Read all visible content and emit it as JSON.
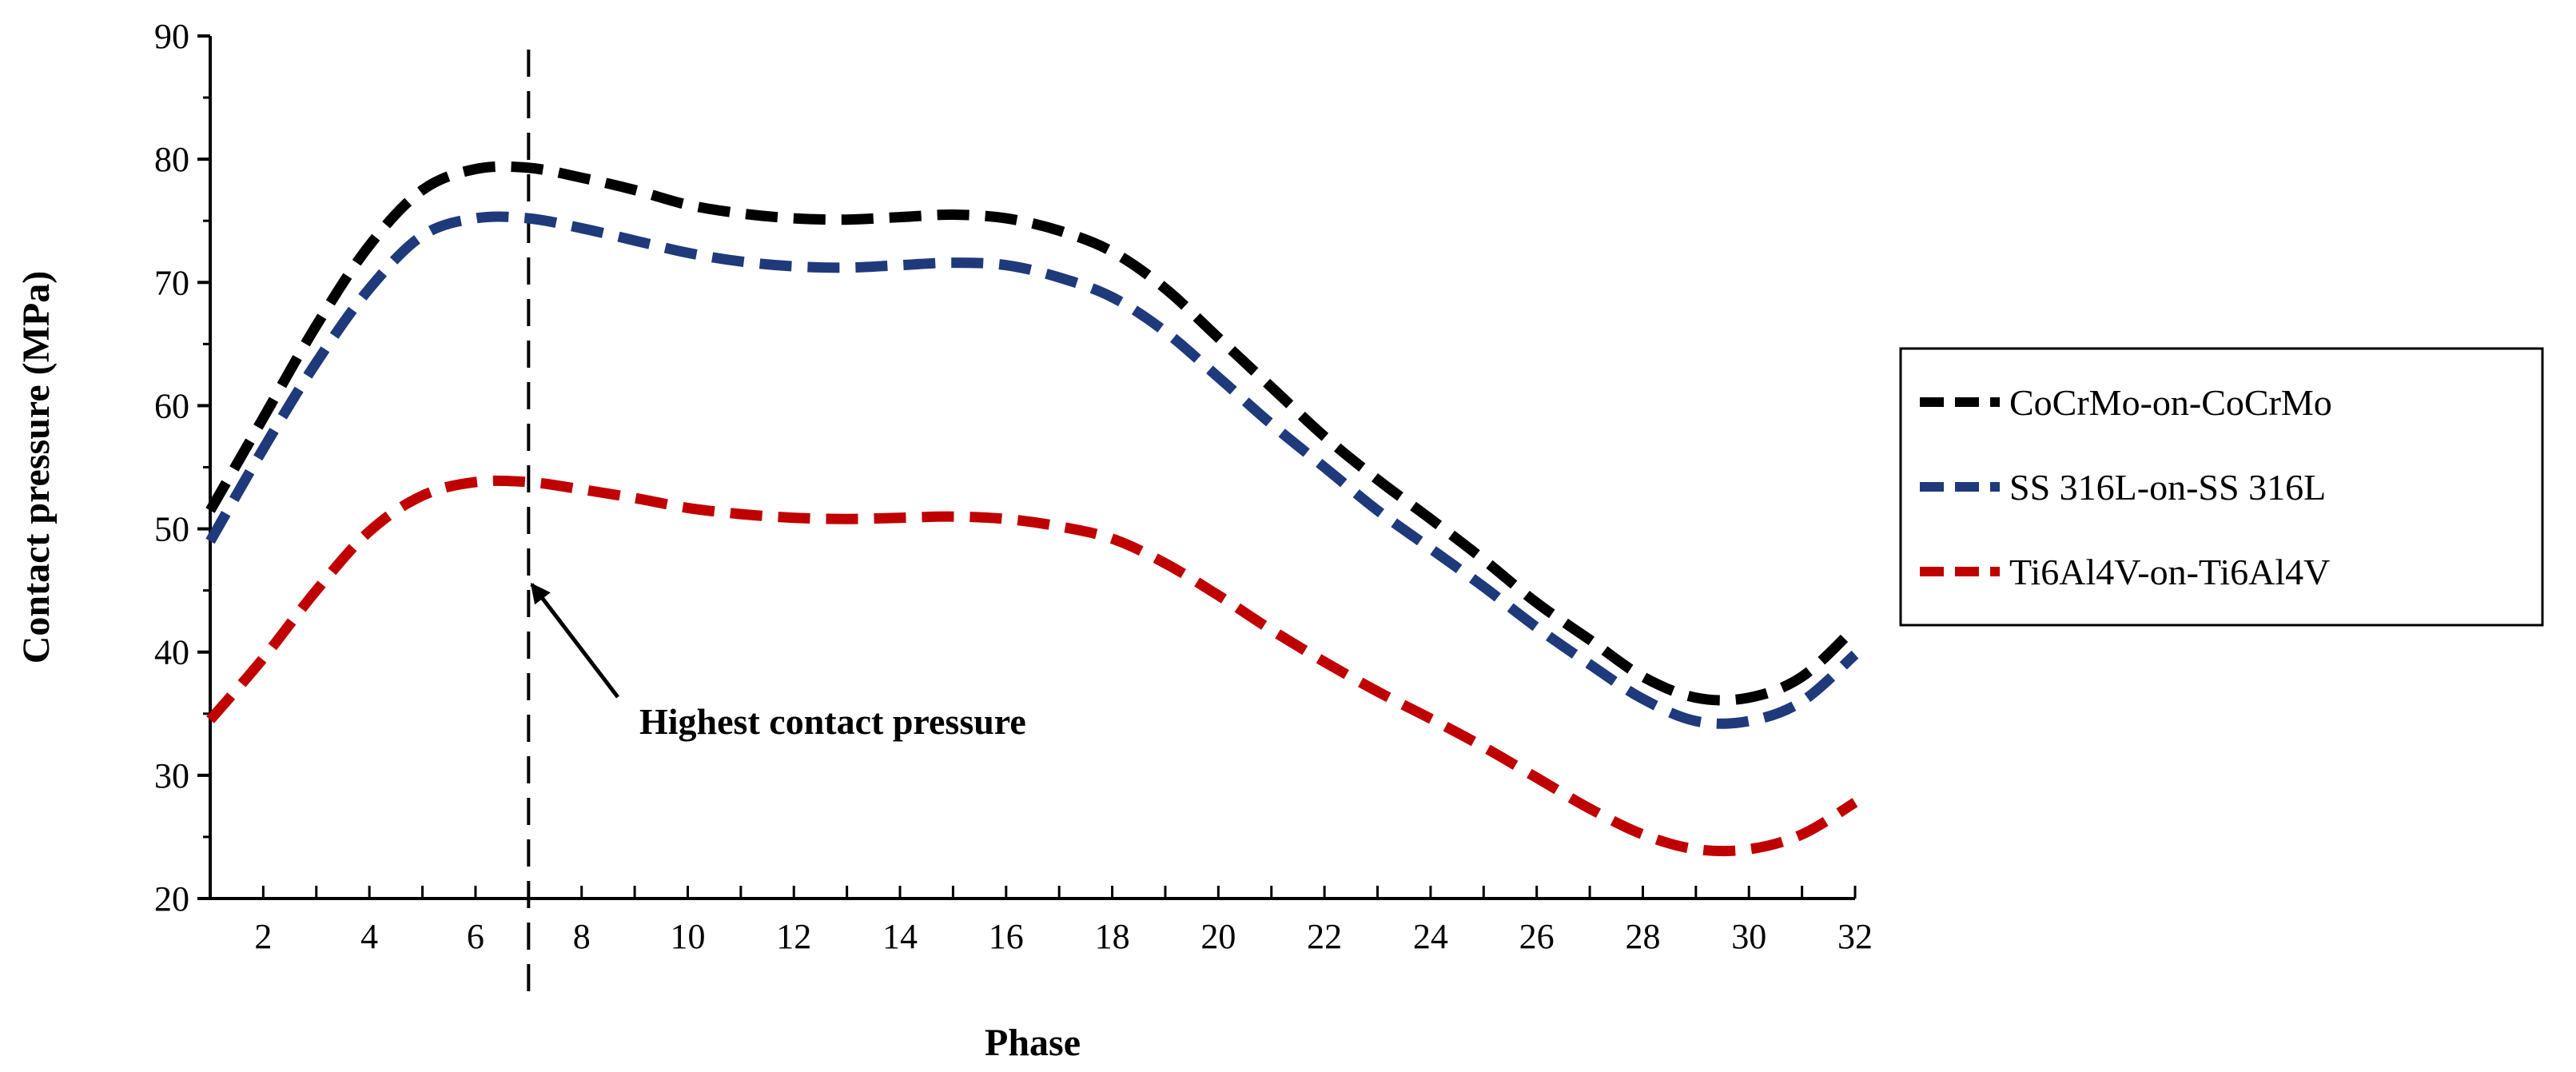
{
  "chart_data": {
    "type": "line",
    "xlabel": "Phase",
    "ylabel": "Contact pressure (MPa)",
    "xlim": [
      1,
      32
    ],
    "ylim": [
      20,
      90
    ],
    "x_ticks": [
      2,
      4,
      6,
      8,
      10,
      12,
      14,
      16,
      18,
      20,
      22,
      24,
      26,
      28,
      30,
      32
    ],
    "y_ticks": [
      20,
      30,
      40,
      50,
      60,
      70,
      80,
      90
    ],
    "x": [
      1,
      2,
      3,
      4,
      5,
      6,
      7,
      8,
      9,
      10,
      11,
      12,
      13,
      14,
      15,
      16,
      17,
      18,
      19,
      20,
      21,
      22,
      23,
      24,
      25,
      26,
      27,
      28,
      29,
      30,
      31,
      32
    ],
    "series": [
      {
        "name": "CoCrMo-on-CoCrMo",
        "color": "#000000",
        "values": [
          51.5,
          59,
          66.5,
          73,
          77.5,
          79.2,
          79.3,
          78.5,
          77.5,
          76.3,
          75.6,
          75.2,
          75.1,
          75.3,
          75.5,
          75.2,
          74.2,
          72.5,
          69.5,
          65.5,
          61.5,
          57.5,
          54,
          50.8,
          47.5,
          44,
          41,
          38,
          36.3,
          36.3,
          38,
          42
        ]
      },
      {
        "name": "SS 316L-on-SS 316L",
        "color": "#1f3a7a",
        "values": [
          49,
          56.5,
          63.5,
          69.5,
          73.8,
          75.2,
          75.2,
          74.4,
          73.4,
          72.4,
          71.7,
          71.3,
          71.2,
          71.4,
          71.6,
          71.4,
          70.4,
          68.8,
          66,
          62.3,
          58.5,
          55,
          51.5,
          48.4,
          45.3,
          42,
          39,
          36.2,
          34.4,
          34.4,
          36,
          39.8
        ]
      },
      {
        "name": "Ti6Al4V-on-Ti6Al4V",
        "color": "#c00000",
        "values": [
          34.5,
          39.5,
          45,
          49.8,
          52.7,
          53.8,
          53.8,
          53.2,
          52.5,
          51.7,
          51.2,
          50.9,
          50.8,
          50.9,
          51,
          50.8,
          50.2,
          49.2,
          47.2,
          44.6,
          41.8,
          39.2,
          36.8,
          34.6,
          32.3,
          29.8,
          27.3,
          25.2,
          24,
          24,
          25.2,
          27.8
        ]
      }
    ],
    "vertical_line_x": 7,
    "annotation": {
      "text": "Highest contact pressure",
      "target_x": 7,
      "target_y": 45.5
    },
    "legend_position": "right"
  }
}
